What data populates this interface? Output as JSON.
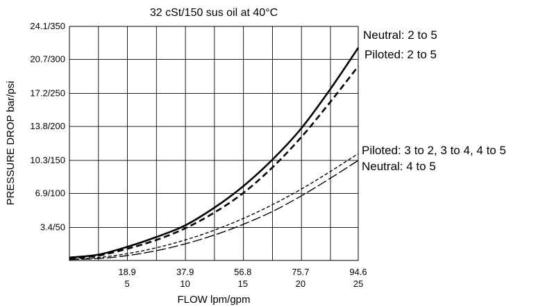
{
  "chart_data": {
    "type": "line",
    "title": "32 cSt/150 sus oil at 40°C",
    "xlabel": "FLOW lpm/gpm",
    "ylabel": "PRESSURE DROP bar/psi",
    "xlim": [
      0,
      94.6
    ],
    "ylim": [
      0,
      24.1
    ],
    "grid": true,
    "x_ticks": [
      {
        "value": 18.9,
        "line1": "18.9",
        "line2": "5"
      },
      {
        "value": 37.9,
        "line1": "37.9",
        "line2": "10"
      },
      {
        "value": 56.8,
        "line1": "56.8",
        "line2": "15"
      },
      {
        "value": 75.7,
        "line1": "75.7",
        "line2": "20"
      },
      {
        "value": 94.6,
        "line1": "94.6",
        "line2": "25"
      }
    ],
    "y_ticks": [
      {
        "value": 3.4,
        "label": "3.4/50"
      },
      {
        "value": 6.9,
        "label": "6.9/100"
      },
      {
        "value": 10.3,
        "label": "10.3/150"
      },
      {
        "value": 13.8,
        "label": "13.8/200"
      },
      {
        "value": 17.2,
        "label": "17.2/250"
      },
      {
        "value": 20.7,
        "label": "20.7/300"
      },
      {
        "value": 24.1,
        "label": "24.1/350"
      }
    ],
    "x": [
      0,
      9.46,
      18.92,
      28.38,
      37.84,
      47.3,
      56.76,
      66.22,
      75.68,
      85.14,
      94.6
    ],
    "series": [
      {
        "name": "Neutral: 2 to 5",
        "style": "solid-thick",
        "values": [
          0.3,
          0.6,
          1.4,
          2.4,
          3.6,
          5.4,
          7.6,
          10.3,
          13.5,
          17.5,
          21.9
        ]
      },
      {
        "name": "Piloted: 2 to 5",
        "style": "dashed-thick",
        "values": [
          0.2,
          0.5,
          1.2,
          2.1,
          3.3,
          4.9,
          6.9,
          9.5,
          12.6,
          16.2,
          20.0
        ]
      },
      {
        "name": "Piloted: 3 to 2, 3 to 4, 4 to 5",
        "style": "dashed-thin",
        "values": [
          0.1,
          0.3,
          0.7,
          1.3,
          2.1,
          3.1,
          4.3,
          5.7,
          7.3,
          9.1,
          11.0
        ]
      },
      {
        "name": "Neutral: 4 to 5",
        "style": "longdash-thin",
        "values": [
          0.1,
          0.2,
          0.5,
          1.0,
          1.7,
          2.6,
          3.7,
          5.0,
          6.6,
          8.4,
          10.3
        ]
      }
    ]
  }
}
